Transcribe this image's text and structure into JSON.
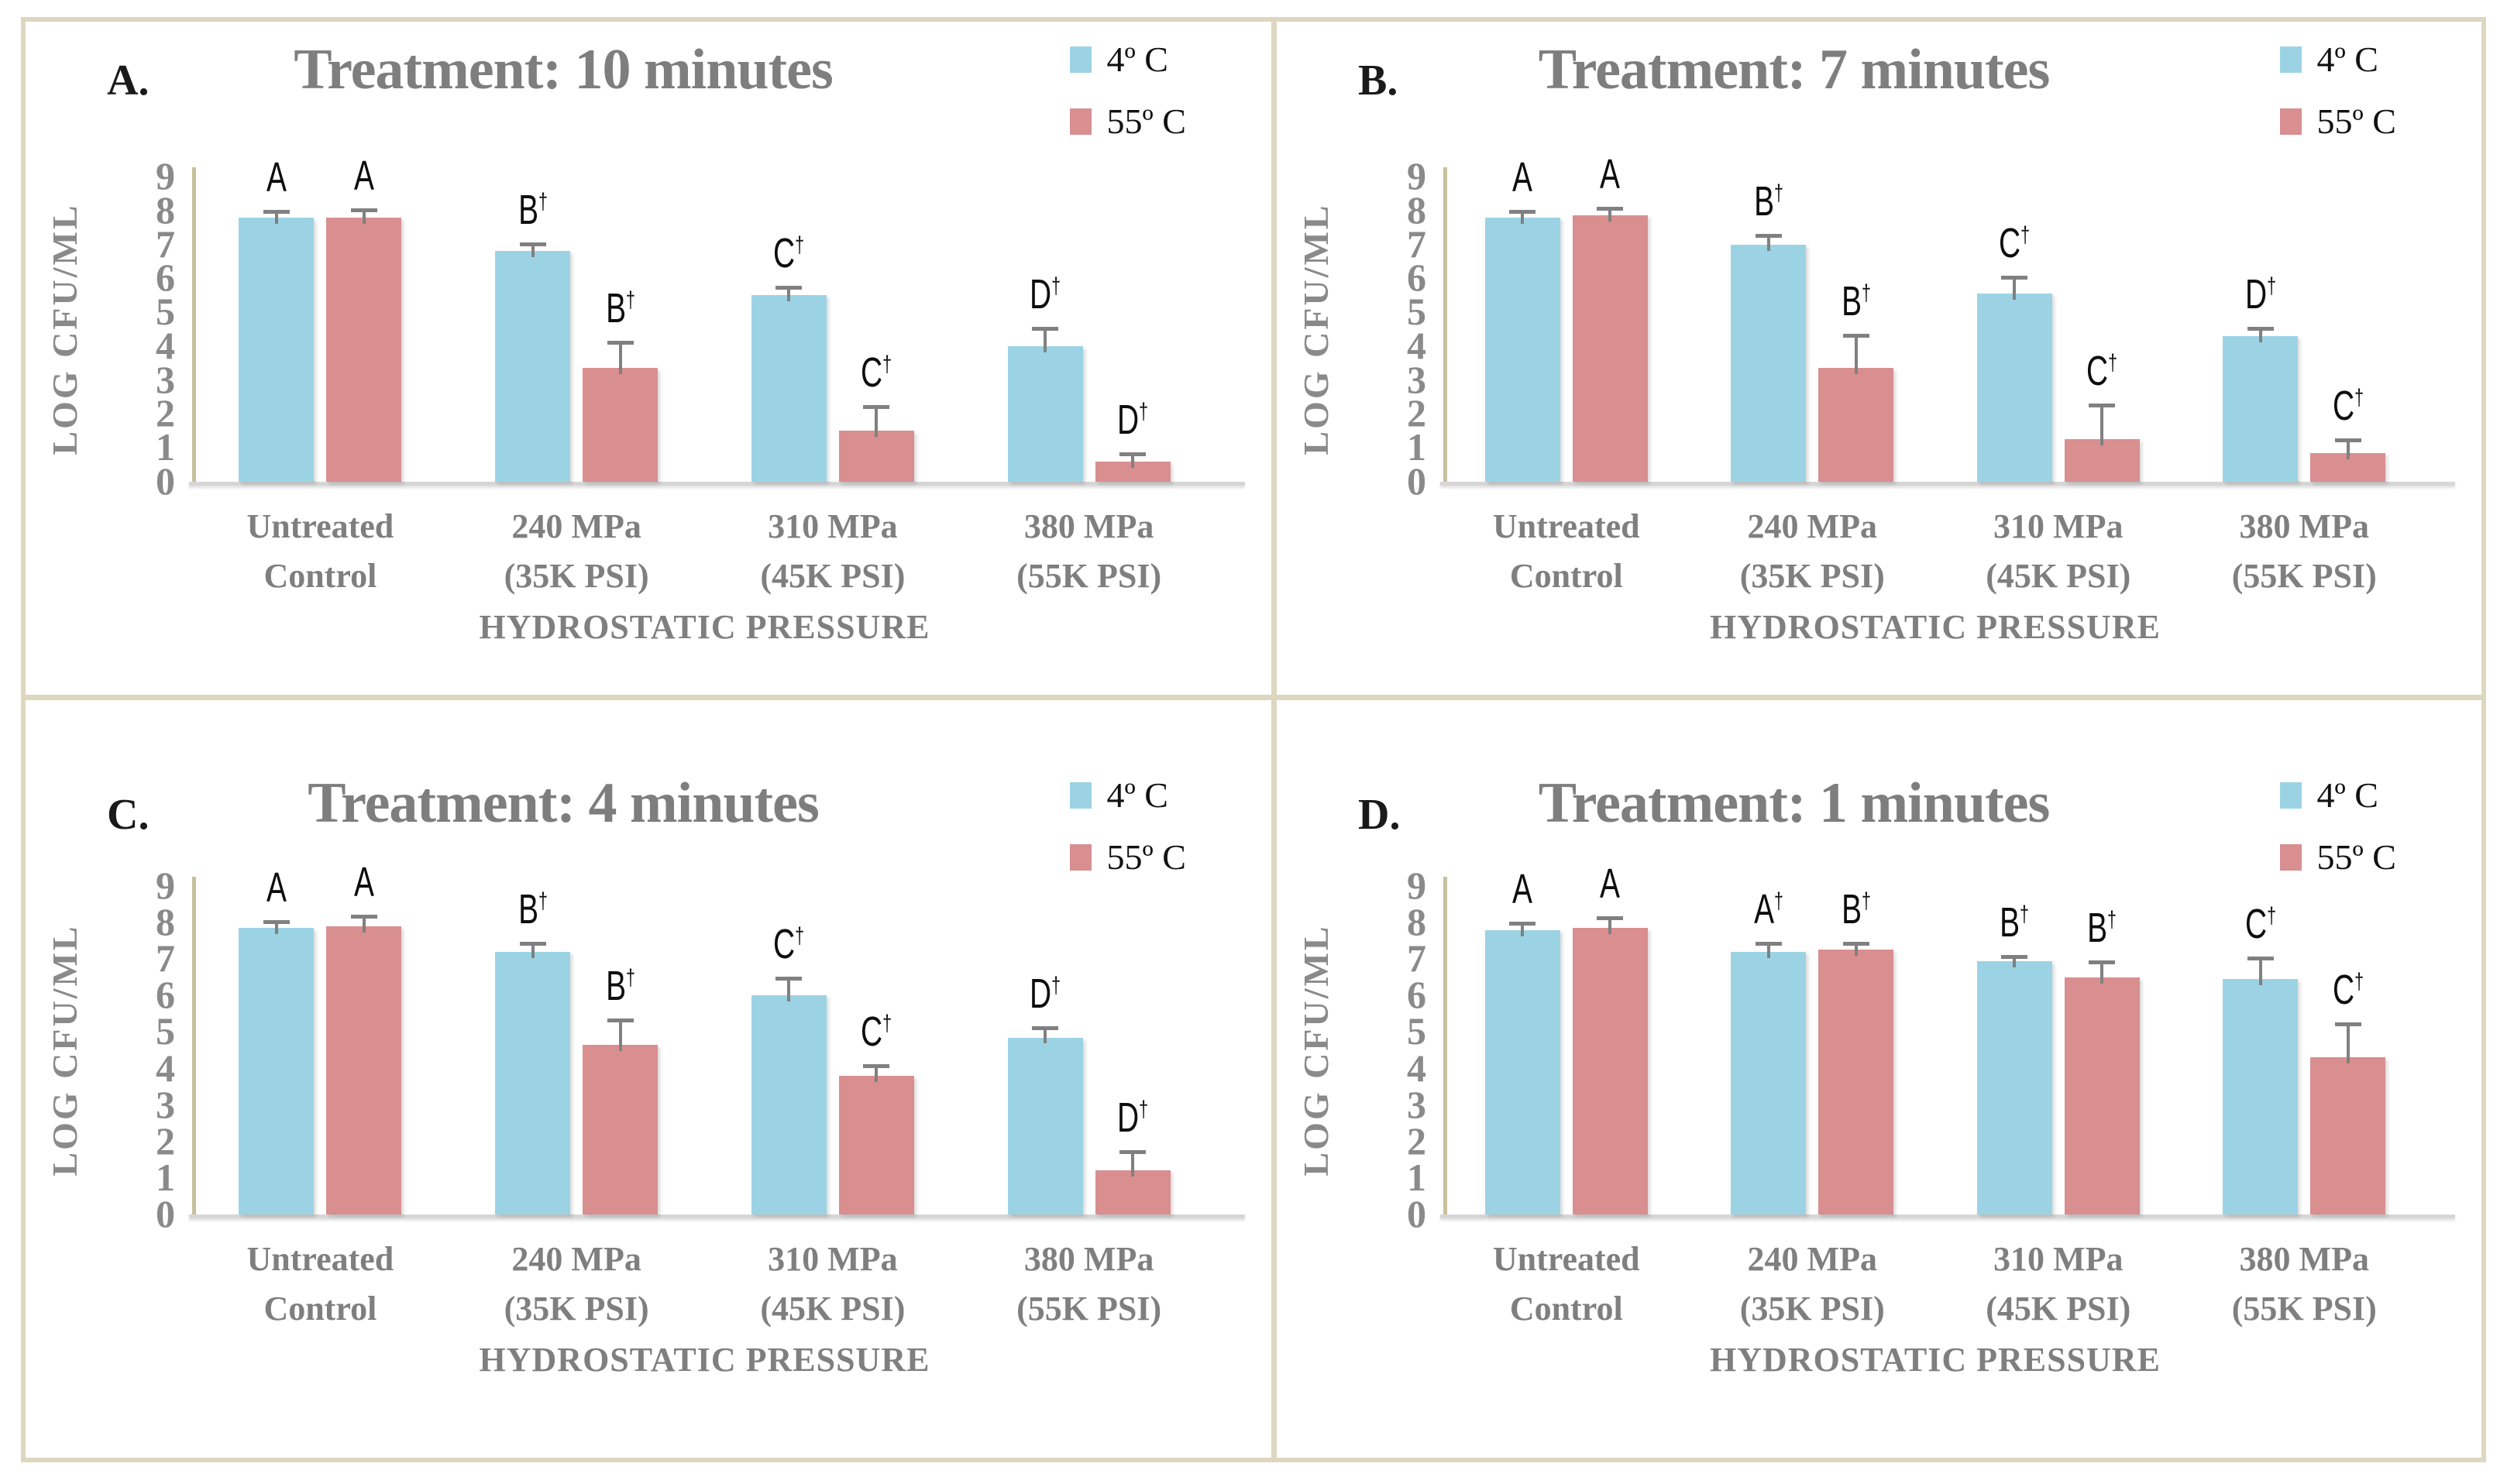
{
  "colors": {
    "series_4c": "#9CD3E4",
    "series_55c": "#D98E90",
    "panel_border": "#DDD7C0",
    "axis_line": "#C9C19C",
    "baseline": "#D6D6D6",
    "text_gray": "#7F7F7F",
    "error_bar": "#808080"
  },
  "chart_data": [
    {
      "type": "bar",
      "panel_label": "A.",
      "title": "Treatment: 10 minutes",
      "xlabel": "HYDROSTATIC PRESSURE",
      "ylabel": "LOG CFU/ML",
      "ylim": [
        0,
        9
      ],
      "yticks": [
        0,
        1,
        2,
        3,
        4,
        5,
        6,
        7,
        8,
        9
      ],
      "grid": false,
      "legend_position": "top-right",
      "categories": [
        [
          "Untreated",
          "Control"
        ],
        [
          "240 MPa",
          "(35K PSI)"
        ],
        [
          "310 MPa",
          "(45K PSI)"
        ],
        [
          "380 MPa",
          "(55K PSI)"
        ]
      ],
      "series": [
        {
          "name": "4º C",
          "color": "#9CD3E4",
          "values": [
            7.8,
            6.8,
            5.5,
            4.0
          ],
          "errors": [
            0.15,
            0.2,
            0.2,
            0.5
          ],
          "letters": [
            "A",
            "B†",
            "C†",
            "D†"
          ]
        },
        {
          "name": "55º C",
          "color": "#D98E90",
          "values": [
            7.8,
            3.35,
            1.5,
            0.6
          ],
          "errors": [
            0.2,
            0.75,
            0.7,
            0.2
          ],
          "letters": [
            "A",
            "B†",
            "C†",
            "D†"
          ]
        }
      ]
    },
    {
      "type": "bar",
      "panel_label": "B.",
      "title": "Treatment: 7 minutes",
      "xlabel": "HYDROSTATIC PRESSURE",
      "ylabel": "LOG CFU/ML",
      "ylim": [
        0,
        9
      ],
      "yticks": [
        0,
        1,
        2,
        3,
        4,
        5,
        6,
        7,
        8,
        9
      ],
      "grid": false,
      "legend_position": "top-right",
      "categories": [
        [
          "Untreated",
          "Control"
        ],
        [
          "240 MPa",
          "(35K PSI)"
        ],
        [
          "310 MPa",
          "(45K PSI)"
        ],
        [
          "380 MPa",
          "(55K PSI)"
        ]
      ],
      "series": [
        {
          "name": "4º C",
          "color": "#9CD3E4",
          "values": [
            7.8,
            7.0,
            5.55,
            4.3
          ],
          "errors": [
            0.15,
            0.25,
            0.45,
            0.2
          ],
          "letters": [
            "A",
            "B†",
            "C†",
            "D†"
          ]
        },
        {
          "name": "55º C",
          "color": "#D98E90",
          "values": [
            7.85,
            3.35,
            1.25,
            0.85
          ],
          "errors": [
            0.2,
            0.95,
            1.0,
            0.35
          ],
          "letters": [
            "A",
            "B†",
            "C†",
            "C†"
          ]
        }
      ]
    },
    {
      "type": "bar",
      "panel_label": "C.",
      "title": "Treatment: 4 minutes",
      "xlabel": "HYDROSTATIC PRESSURE",
      "ylabel": "LOG CFU/ML",
      "ylim": [
        0,
        9
      ],
      "yticks": [
        0,
        1,
        2,
        3,
        4,
        5,
        6,
        7,
        8,
        9
      ],
      "grid": false,
      "legend_position": "top-right",
      "categories": [
        [
          "Untreated",
          "Control"
        ],
        [
          "240 MPa",
          "(35K PSI)"
        ],
        [
          "310 MPa",
          "(45K PSI)"
        ],
        [
          "380 MPa",
          "(55K PSI)"
        ]
      ],
      "series": [
        {
          "name": "4º C",
          "color": "#9CD3E4",
          "values": [
            7.85,
            7.2,
            6.0,
            4.85
          ],
          "errors": [
            0.15,
            0.2,
            0.45,
            0.25
          ],
          "letters": [
            "A",
            "B†",
            "C†",
            "D†"
          ]
        },
        {
          "name": "55º C",
          "color": "#D98E90",
          "values": [
            7.9,
            4.65,
            3.8,
            1.2
          ],
          "errors": [
            0.25,
            0.65,
            0.25,
            0.5
          ],
          "letters": [
            "A",
            "B†",
            "C†",
            "D†"
          ]
        }
      ]
    },
    {
      "type": "bar",
      "panel_label": "D.",
      "title": "Treatment: 1 minutes",
      "xlabel": "HYDROSTATIC PRESSURE",
      "ylabel": "LOG CFU/ML",
      "ylim": [
        0,
        9
      ],
      "yticks": [
        0,
        1,
        2,
        3,
        4,
        5,
        6,
        7,
        8,
        9
      ],
      "grid": false,
      "legend_position": "top-right",
      "categories": [
        [
          "Untreated",
          "Control"
        ],
        [
          "240 MPa",
          "(35K PSI)"
        ],
        [
          "310 MPa",
          "(45K PSI)"
        ],
        [
          "380 MPa",
          "(55K PSI)"
        ]
      ],
      "series": [
        {
          "name": "4º C",
          "color": "#9CD3E4",
          "values": [
            7.8,
            7.2,
            6.95,
            6.45
          ],
          "errors": [
            0.15,
            0.2,
            0.1,
            0.55
          ],
          "letters": [
            "A",
            "A†",
            "B†",
            "C†"
          ]
        },
        {
          "name": "55º C",
          "color": "#D98E90",
          "values": [
            7.85,
            7.25,
            6.5,
            4.3
          ],
          "errors": [
            0.25,
            0.15,
            0.4,
            0.9
          ],
          "letters": [
            "A",
            "B†",
            "B†",
            "C†"
          ]
        }
      ]
    }
  ]
}
